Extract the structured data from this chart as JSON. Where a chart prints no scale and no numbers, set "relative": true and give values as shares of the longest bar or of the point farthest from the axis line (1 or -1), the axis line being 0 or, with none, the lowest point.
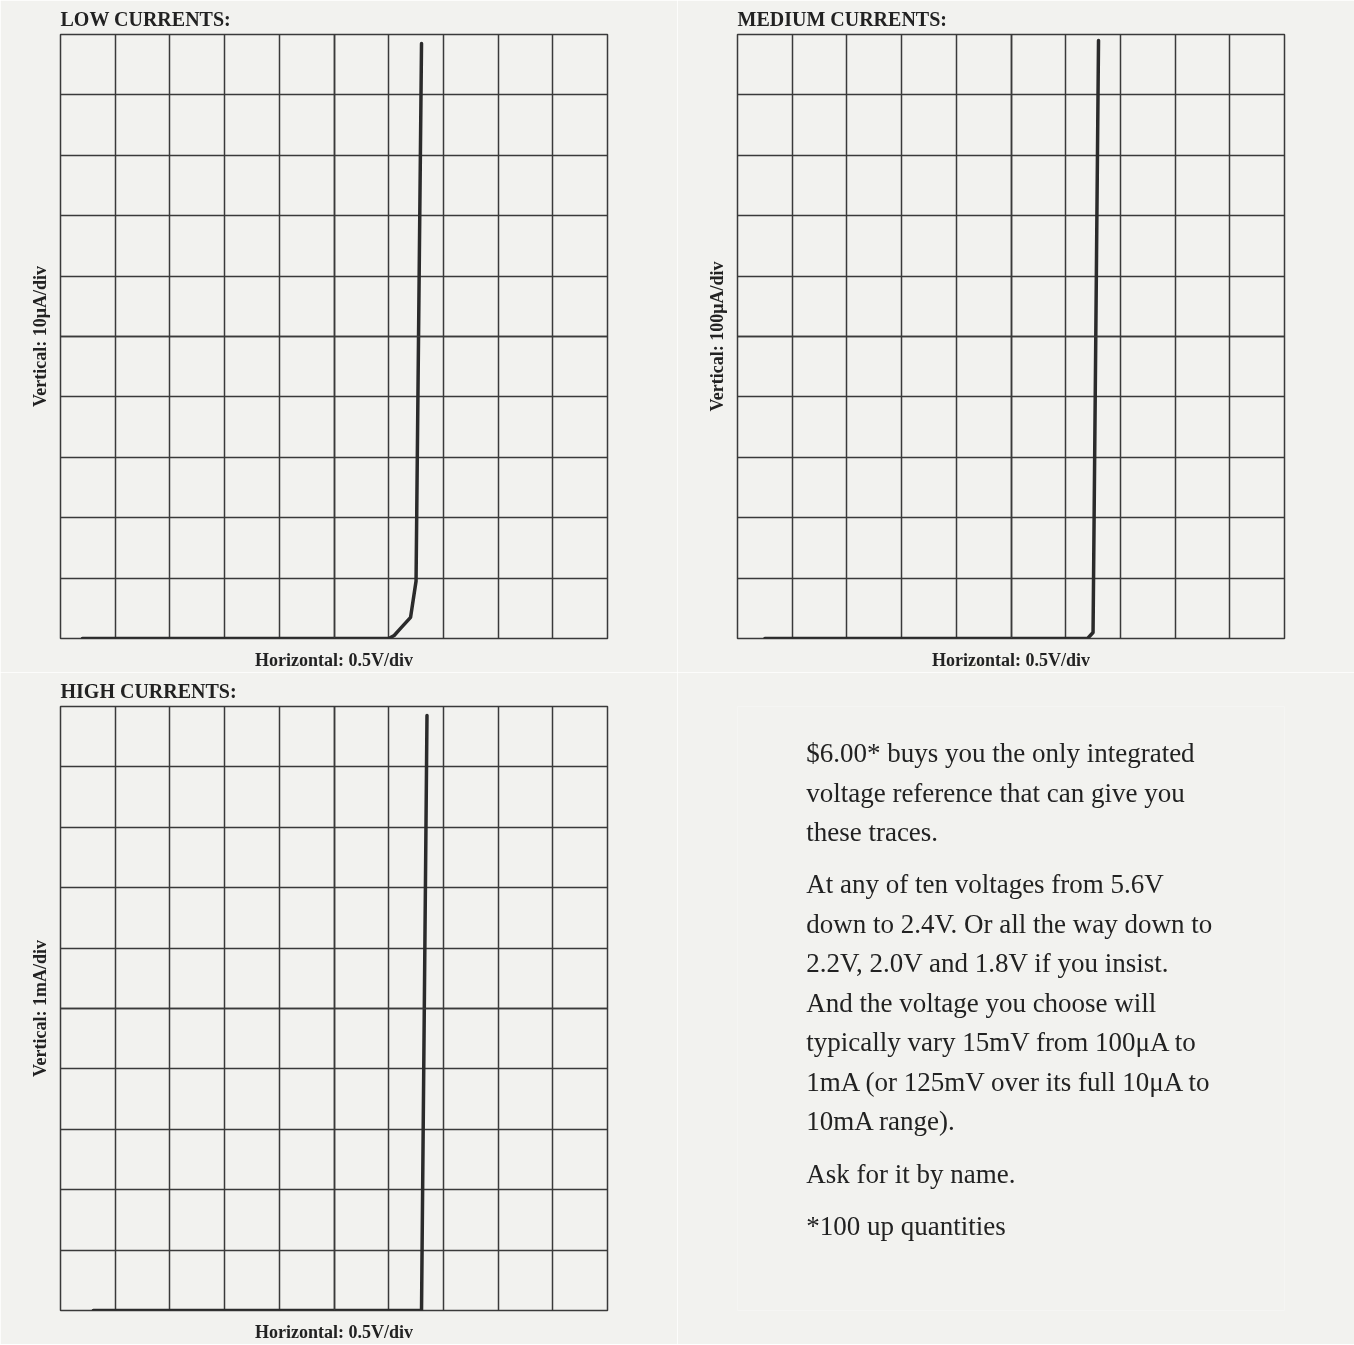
{
  "chart_data": [
    {
      "type": "line",
      "title": "LOW CURRENTS:",
      "xlabel": "Horizontal: 0.5V/div",
      "ylabel": "Vertical: 10μA/div",
      "relative": true,
      "grid": true,
      "tick_labels": false,
      "color": "#2b2b2b",
      "categories": [
        null,
        null,
        null,
        null,
        null,
        null,
        null,
        null,
        null,
        null,
        null,
        null,
        null,
        null,
        null,
        null,
        null,
        null,
        null,
        null,
        null,
        null,
        null,
        null,
        null,
        null,
        null,
        null,
        null,
        null,
        null,
        null,
        null,
        null,
        null,
        null,
        null,
        null,
        null,
        null,
        null,
        null,
        null,
        null,
        null,
        null,
        null,
        null,
        null,
        null,
        null,
        null,
        null,
        null,
        null,
        null,
        null,
        null,
        null,
        null,
        null,
        null,
        null,
        null,
        null,
        null,
        null,
        null,
        null,
        null,
        null,
        null,
        null,
        null,
        null,
        null,
        null,
        null,
        null,
        null,
        null,
        null,
        null,
        null,
        null,
        null,
        null,
        null,
        null,
        null,
        null,
        null,
        null,
        null,
        null,
        null,
        null,
        null,
        null,
        null,
        null
      ],
      "values": [
        null,
        null,
        null,
        null,
        -1,
        -1,
        -1,
        -1,
        -1,
        -1,
        -1,
        -1,
        -1,
        -1,
        -1,
        -1,
        -1,
        -1,
        -1,
        -1,
        -1,
        -1,
        -1,
        -1,
        -1,
        -1,
        -1,
        -1,
        -1,
        -1,
        -1,
        -1,
        -1,
        -1,
        -1,
        -1,
        -1,
        -1,
        -1,
        -1,
        -1,
        -1,
        -1,
        -1,
        -1,
        -1,
        -1,
        -1,
        -1,
        -1,
        -1,
        -1,
        -1,
        -1,
        -1,
        -1,
        -1,
        -1,
        -1,
        -1,
        -1,
        -0.99,
        -0.97,
        -0.95,
        -0.93,
        -0.81,
        0.97,
        null,
        null,
        null,
        null,
        null,
        null,
        null,
        null,
        null,
        null,
        null,
        null,
        null,
        null,
        null,
        null,
        null,
        null,
        null,
        null,
        null,
        null,
        null,
        null,
        null,
        null,
        null,
        null,
        null,
        null,
        null,
        null,
        null,
        null
      ]
    },
    {
      "type": "line",
      "title": "MEDIUM CURRENTS:",
      "xlabel": "Horizontal: 0.5V/div",
      "ylabel": "Vertical: 100μA/div",
      "relative": true,
      "grid": true,
      "tick_labels": false,
      "color": "#2b2b2b",
      "categories": [
        null,
        null,
        null,
        null,
        null,
        null,
        null,
        null,
        null,
        null,
        null,
        null,
        null,
        null,
        null,
        null,
        null,
        null,
        null,
        null,
        null,
        null,
        null,
        null,
        null,
        null,
        null,
        null,
        null,
        null,
        null,
        null,
        null,
        null,
        null,
        null,
        null,
        null,
        null,
        null,
        null,
        null,
        null,
        null,
        null,
        null,
        null,
        null,
        null,
        null,
        null,
        null,
        null,
        null,
        null,
        null,
        null,
        null,
        null,
        null,
        null,
        null,
        null,
        null,
        null,
        null,
        null,
        null,
        null,
        null,
        null,
        null,
        null,
        null,
        null,
        null,
        null,
        null,
        null,
        null,
        null,
        null,
        null,
        null,
        null,
        null,
        null,
        null,
        null,
        null,
        null,
        null,
        null,
        null,
        null,
        null,
        null,
        null,
        null,
        null,
        null
      ],
      "values": [
        null,
        null,
        null,
        null,
        null,
        -1,
        -1,
        -1,
        -1,
        -1,
        -1,
        -1,
        -1,
        -1,
        -1,
        -1,
        -1,
        -1,
        -1,
        -1,
        -1,
        -1,
        -1,
        -1,
        -1,
        -1,
        -1,
        -1,
        -1,
        -1,
        -1,
        -1,
        -1,
        -1,
        -1,
        -1,
        -1,
        -1,
        -1,
        -1,
        -1,
        -1,
        -1,
        -1,
        -1,
        -1,
        -1,
        -1,
        -1,
        -1,
        -1,
        -1,
        -1,
        -1,
        -1,
        -1,
        -1,
        -1,
        -1,
        -1,
        -1,
        -1,
        -1,
        -1,
        -1,
        -0.98,
        0.98,
        null,
        null,
        null,
        null,
        null,
        null,
        null,
        null,
        null,
        null,
        null,
        null,
        null,
        null,
        null,
        null,
        null,
        null,
        null,
        null,
        null,
        null,
        null,
        null,
        null,
        null,
        null,
        null,
        null,
        null,
        null,
        null,
        null,
        null
      ]
    },
    {
      "type": "line",
      "title": "HIGH CURRENTS:",
      "xlabel": "Horizontal: 0.5V/div",
      "ylabel": "Vertical: 1mA/div",
      "relative": true,
      "grid": true,
      "tick_labels": false,
      "color": "#2b2b2b",
      "categories": [
        null,
        null,
        null,
        null,
        null,
        null,
        null,
        null,
        null,
        null,
        null,
        null,
        null,
        null,
        null,
        null,
        null,
        null,
        null,
        null,
        null,
        null,
        null,
        null,
        null,
        null,
        null,
        null,
        null,
        null,
        null,
        null,
        null,
        null,
        null,
        null,
        null,
        null,
        null,
        null,
        null,
        null,
        null,
        null,
        null,
        null,
        null,
        null,
        null,
        null,
        null,
        null,
        null,
        null,
        null,
        null,
        null,
        null,
        null,
        null,
        null,
        null,
        null,
        null,
        null,
        null,
        null,
        null,
        null,
        null,
        null,
        null,
        null,
        null,
        null,
        null,
        null,
        null,
        null,
        null,
        null,
        null,
        null,
        null,
        null,
        null,
        null,
        null,
        null,
        null,
        null,
        null,
        null,
        null,
        null,
        null,
        null,
        null,
        null,
        null,
        null
      ],
      "values": [
        null,
        null,
        null,
        null,
        null,
        null,
        -1,
        -1,
        -1,
        -1,
        -1,
        -1,
        -1,
        -1,
        -1,
        -1,
        -1,
        -1,
        -1,
        -1,
        -1,
        -1,
        -1,
        -1,
        -1,
        -1,
        -1,
        -1,
        -1,
        -1,
        -1,
        -1,
        -1,
        -1,
        -1,
        -1,
        -1,
        -1,
        -1,
        -1,
        -1,
        -1,
        -1,
        -1,
        -1,
        -1,
        -1,
        -1,
        -1,
        -1,
        -1,
        -1,
        -1,
        -1,
        -1,
        -1,
        -1,
        -1,
        -1,
        -1,
        -1,
        -1,
        -1,
        -1,
        -1,
        -1,
        -1,
        0.97,
        null,
        null,
        null,
        null,
        null,
        null,
        null,
        null,
        null,
        null,
        null,
        null,
        null,
        null,
        null,
        null,
        null,
        null,
        null,
        null,
        null,
        null,
        null,
        null,
        null,
        null,
        null,
        null,
        null,
        null,
        null,
        null,
        null
      ]
    },
    {
      "type": "other",
      "annotations": [
        "$6.00* buys you the only integrated voltage reference that can give you these traces.",
        "At any of ten voltages from 5.6V down to 2.4V. Or all the way down to 2.2V, 2.0V and 1.8V if you insist. And the voltage you choose will typically vary 15mV from 100μA to 1mA (or 125mV over its full 10μA to 10mA range).",
        "Ask for it by name.",
        "*100 up quantities"
      ]
    }
  ]
}
